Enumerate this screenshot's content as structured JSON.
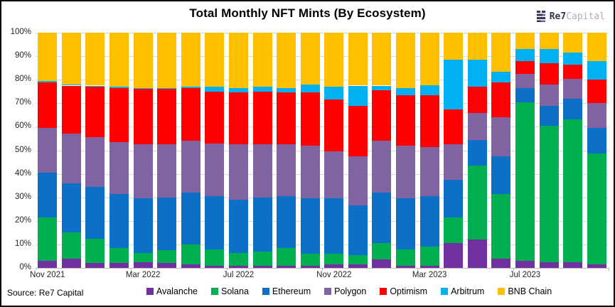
{
  "title": "Total Monthly NFT Mints (By Ecosystem)",
  "logo": {
    "primary": "Re7",
    "secondary": "Capital"
  },
  "source": "Source: Re7 Capital",
  "colors": {
    "avalanche": "#7030A0",
    "solana": "#00B050",
    "ethereum": "#0B70C6",
    "polygon": "#8064A2",
    "optimism": "#FF0000",
    "arbitrum": "#00B0F0",
    "bnb_chain": "#FFC000",
    "gridline": "#D9D9D9",
    "logo_dark": "#343851",
    "logo_purple": "#7C5CBF"
  },
  "chart_data": {
    "type": "bar",
    "stacked": true,
    "normalized": true,
    "unit": "%",
    "title": "Total Monthly NFT Mints (By Ecosystem)",
    "ylim": [
      0,
      100
    ],
    "y_tick_labels": [
      "0%",
      "10%",
      "20%",
      "30%",
      "40%",
      "50%",
      "60%",
      "70%",
      "80%",
      "90%",
      "100%"
    ],
    "grid": true,
    "legend_position": "bottom",
    "categories": [
      "Nov 2021",
      "Dec 2021",
      "Jan 2022",
      "Feb 2022",
      "Mar 2022",
      "Apr 2022",
      "May 2022",
      "Jun 2022",
      "Jul 2022",
      "Aug 2022",
      "Sep 2022",
      "Oct 2022",
      "Nov 2022",
      "Dec 2022",
      "Jan 2023",
      "Feb 2023",
      "Mar 2023",
      "Apr 2023",
      "May 2023",
      "Jun 2023",
      "Jul 2023",
      "Aug 2023",
      "Sep 2023",
      "Oct 2023"
    ],
    "x_tick_every": 4,
    "x_tick_labels": [
      "Nov 2021",
      "Mar 2022",
      "Jul 2022",
      "Nov 2022",
      "Mar 2023",
      "Jul 2023"
    ],
    "series": [
      {
        "name": "Avalanche",
        "color": "#7030A0",
        "values": [
          3,
          4,
          2,
          2,
          2.5,
          2,
          1.5,
          1,
          1,
          1,
          1,
          1,
          1.5,
          1.5,
          3.5,
          1,
          1,
          10.5,
          12,
          4,
          3,
          2.5,
          2.5,
          1.5
        ]
      },
      {
        "name": "Solana",
        "color": "#00B050",
        "values": [
          18.5,
          11,
          10.5,
          6.5,
          4,
          5.5,
          8.5,
          7,
          5.5,
          6,
          7.5,
          5,
          4.5,
          4,
          7,
          7,
          8,
          11,
          31.5,
          27.5,
          67.5,
          58,
          60.5,
          47
        ]
      },
      {
        "name": "Ethereum",
        "color": "#0B70C6",
        "values": [
          19,
          21,
          22,
          23,
          23,
          22.5,
          22,
          22.5,
          22.5,
          23,
          22,
          23.5,
          23.5,
          21,
          21.5,
          21.5,
          21.5,
          16,
          11,
          16,
          6,
          8.5,
          9,
          11
        ]
      },
      {
        "name": "Polygon",
        "color": "#8064A2",
        "values": [
          19,
          21,
          21,
          22,
          23,
          22.5,
          22,
          22.5,
          23.5,
          22.5,
          22,
          22.5,
          20,
          21,
          22,
          22.5,
          21,
          15,
          11.5,
          16.5,
          6,
          9,
          8.5,
          10.5
        ]
      },
      {
        "name": "Optimism",
        "color": "#FF0000",
        "values": [
          19.5,
          20.5,
          21.5,
          23,
          23.5,
          23.5,
          22.5,
          22,
          22,
          22.5,
          22,
          22.5,
          22,
          21.5,
          21.5,
          21.5,
          22,
          15,
          11,
          15,
          5.5,
          9,
          6,
          10
        ]
      },
      {
        "name": "Arbitrum",
        "color": "#00B0F0",
        "values": [
          0.5,
          0.5,
          0.5,
          0.5,
          0.5,
          0.5,
          0.5,
          2,
          2,
          2,
          2,
          3.5,
          5.5,
          8.5,
          2,
          3,
          4,
          21,
          11.5,
          4.5,
          5,
          6,
          5,
          8
        ]
      },
      {
        "name": "BNB Chain",
        "color": "#FFC000",
        "values": [
          20.5,
          22,
          22.5,
          23,
          23.5,
          23.5,
          23,
          23,
          23.5,
          23,
          23.5,
          22,
          23,
          22.5,
          22.5,
          23.5,
          22.5,
          11.5,
          11.5,
          16.5,
          7,
          7,
          8.5,
          12
        ]
      }
    ]
  }
}
